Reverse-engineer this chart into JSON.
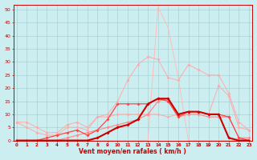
{
  "x": [
    0,
    1,
    2,
    3,
    4,
    5,
    6,
    7,
    8,
    9,
    10,
    11,
    12,
    13,
    14,
    15,
    16,
    17,
    18,
    19,
    20,
    21,
    22,
    23
  ],
  "lines": [
    {
      "y": [
        0,
        0,
        0,
        0,
        0,
        0,
        0,
        0,
        0,
        0,
        0,
        0,
        0,
        0,
        51,
        43,
        24,
        0,
        0,
        0,
        0,
        0,
        0,
        0
      ],
      "color": "#ffbbbb",
      "lw": 0.7,
      "marker": null,
      "ms": 0
    },
    {
      "y": [
        7,
        7,
        5,
        3,
        3,
        6,
        7,
        5,
        9,
        10,
        15,
        23,
        29,
        32,
        31,
        24,
        23,
        29,
        27,
        25,
        25,
        18,
        7,
        4
      ],
      "color": "#ffaaaa",
      "lw": 0.7,
      "marker": "D",
      "ms": 2
    },
    {
      "y": [
        7,
        5,
        3,
        2,
        2,
        5,
        5,
        4,
        9,
        9,
        10,
        10,
        10,
        10,
        10,
        9,
        10,
        11,
        11,
        10,
        21,
        17,
        5,
        4
      ],
      "color": "#ffaaaa",
      "lw": 0.7,
      "marker": "D",
      "ms": 2
    },
    {
      "y": [
        0,
        0,
        0,
        0,
        0,
        1,
        2,
        3,
        4,
        5,
        6,
        7,
        8,
        10,
        15,
        16,
        9,
        10,
        10,
        9,
        9,
        9,
        1,
        1
      ],
      "color": "#ff8888",
      "lw": 0.8,
      "marker": "D",
      "ms": 2
    },
    {
      "y": [
        0,
        0,
        0,
        1,
        2,
        3,
        4,
        2,
        4,
        8,
        14,
        14,
        14,
        14,
        16,
        15,
        9,
        11,
        11,
        10,
        10,
        9,
        1,
        0
      ],
      "color": "#ff4444",
      "lw": 0.9,
      "marker": "D",
      "ms": 2
    },
    {
      "y": [
        0,
        0,
        0,
        0,
        0,
        0,
        0,
        0,
        1,
        3,
        5,
        6,
        8,
        14,
        16,
        16,
        10,
        11,
        11,
        10,
        10,
        1,
        0,
        0
      ],
      "color": "#cc0000",
      "lw": 1.5,
      "marker": "D",
      "ms": 2
    }
  ],
  "bg_color": "#cdeef0",
  "grid_color": "#a0cccc",
  "axis_color": "#cc0000",
  "xlabel": "Vent moyen/en rafales ( km/h )",
  "ylim": [
    0,
    52
  ],
  "yticks": [
    0,
    5,
    10,
    15,
    20,
    25,
    30,
    35,
    40,
    45,
    50
  ],
  "xticks": [
    0,
    1,
    2,
    3,
    4,
    5,
    6,
    7,
    8,
    9,
    10,
    11,
    12,
    13,
    14,
    15,
    16,
    17,
    18,
    19,
    20,
    21,
    22,
    23
  ]
}
